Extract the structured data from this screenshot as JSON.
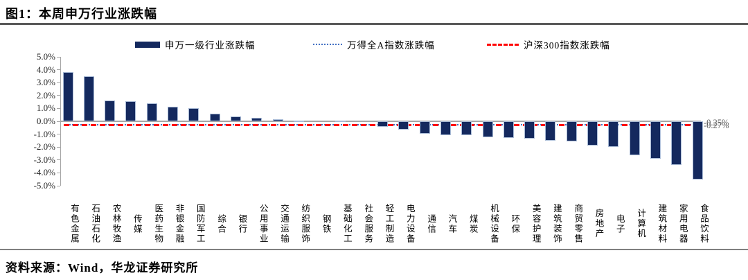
{
  "figure": {
    "title": "图1：本周申万行业涨跌幅",
    "source": "资料来源：Wind，华龙证券研究所"
  },
  "colors": {
    "bar_fill": "#14295e",
    "bar_border": "#a9bbd6",
    "wande_line": "#4472c4",
    "hs300_line": "#ff0000",
    "axis": "#a6a6a6",
    "annotation_text": "#595959"
  },
  "legend": {
    "items": [
      {
        "label": "申万一级行业涨跌幅",
        "swatch": "bar",
        "color": "#14295e"
      },
      {
        "label": "万得全A指数涨跌幅",
        "swatch": "dotted",
        "color": "#4472c4"
      },
      {
        "label": "沪深300指数涨跌幅",
        "swatch": "dashed",
        "color": "#ff0000"
      }
    ]
  },
  "chart_data": {
    "type": "bar",
    "title": "本周申万行业涨跌幅",
    "unit": "%",
    "ylim": [
      -5.0,
      5.0
    ],
    "ytick_step": 1.0,
    "ytick_labels": [
      "5.0%",
      "4.0%",
      "3.0%",
      "2.0%",
      "1.0%",
      "0.0%",
      "-1.0%",
      "-2.0%",
      "-3.0%",
      "-4.0%",
      "-5.0%"
    ],
    "grid": false,
    "legend_position": "top",
    "categories": [
      "有色金属",
      "石油石化",
      "农林牧渔",
      "传媒",
      "医药生物",
      "非银金融",
      "国防军工",
      "综合",
      "银行",
      "公用事业",
      "交通运输",
      "纺织服饰",
      "钢铁",
      "基础化工",
      "社会服务",
      "轻工制造",
      "电力设备",
      "通信",
      "汽车",
      "煤炭",
      "机械设备",
      "环保",
      "美容护理",
      "建筑装饰",
      "商贸零售",
      "房地产",
      "电子",
      "计算机",
      "建筑材料",
      "家用电器",
      "食品饮料"
    ],
    "series": [
      {
        "name": "申万一级行业涨跌幅",
        "type": "bar",
        "values": [
          3.8,
          3.5,
          1.6,
          1.55,
          1.4,
          1.15,
          1.0,
          0.6,
          0.4,
          0.25,
          0.15,
          0.05,
          0.0,
          0.05,
          0.0,
          -0.45,
          -0.65,
          -0.95,
          -1.05,
          -1.1,
          -1.25,
          -1.3,
          -1.35,
          -1.5,
          -1.55,
          -1.9,
          -2.0,
          -2.65,
          -2.9,
          -3.4,
          -4.5
        ]
      }
    ],
    "reference_lines": [
      {
        "name": "万得全A指数涨跌幅",
        "value": -0.25,
        "label": "-0.25%",
        "style": "dotted",
        "color": "#4472c4"
      },
      {
        "name": "沪深300指数涨跌幅",
        "value": -0.27,
        "label": "-0.27%",
        "style": "dashed",
        "color": "#ff0000"
      }
    ]
  }
}
